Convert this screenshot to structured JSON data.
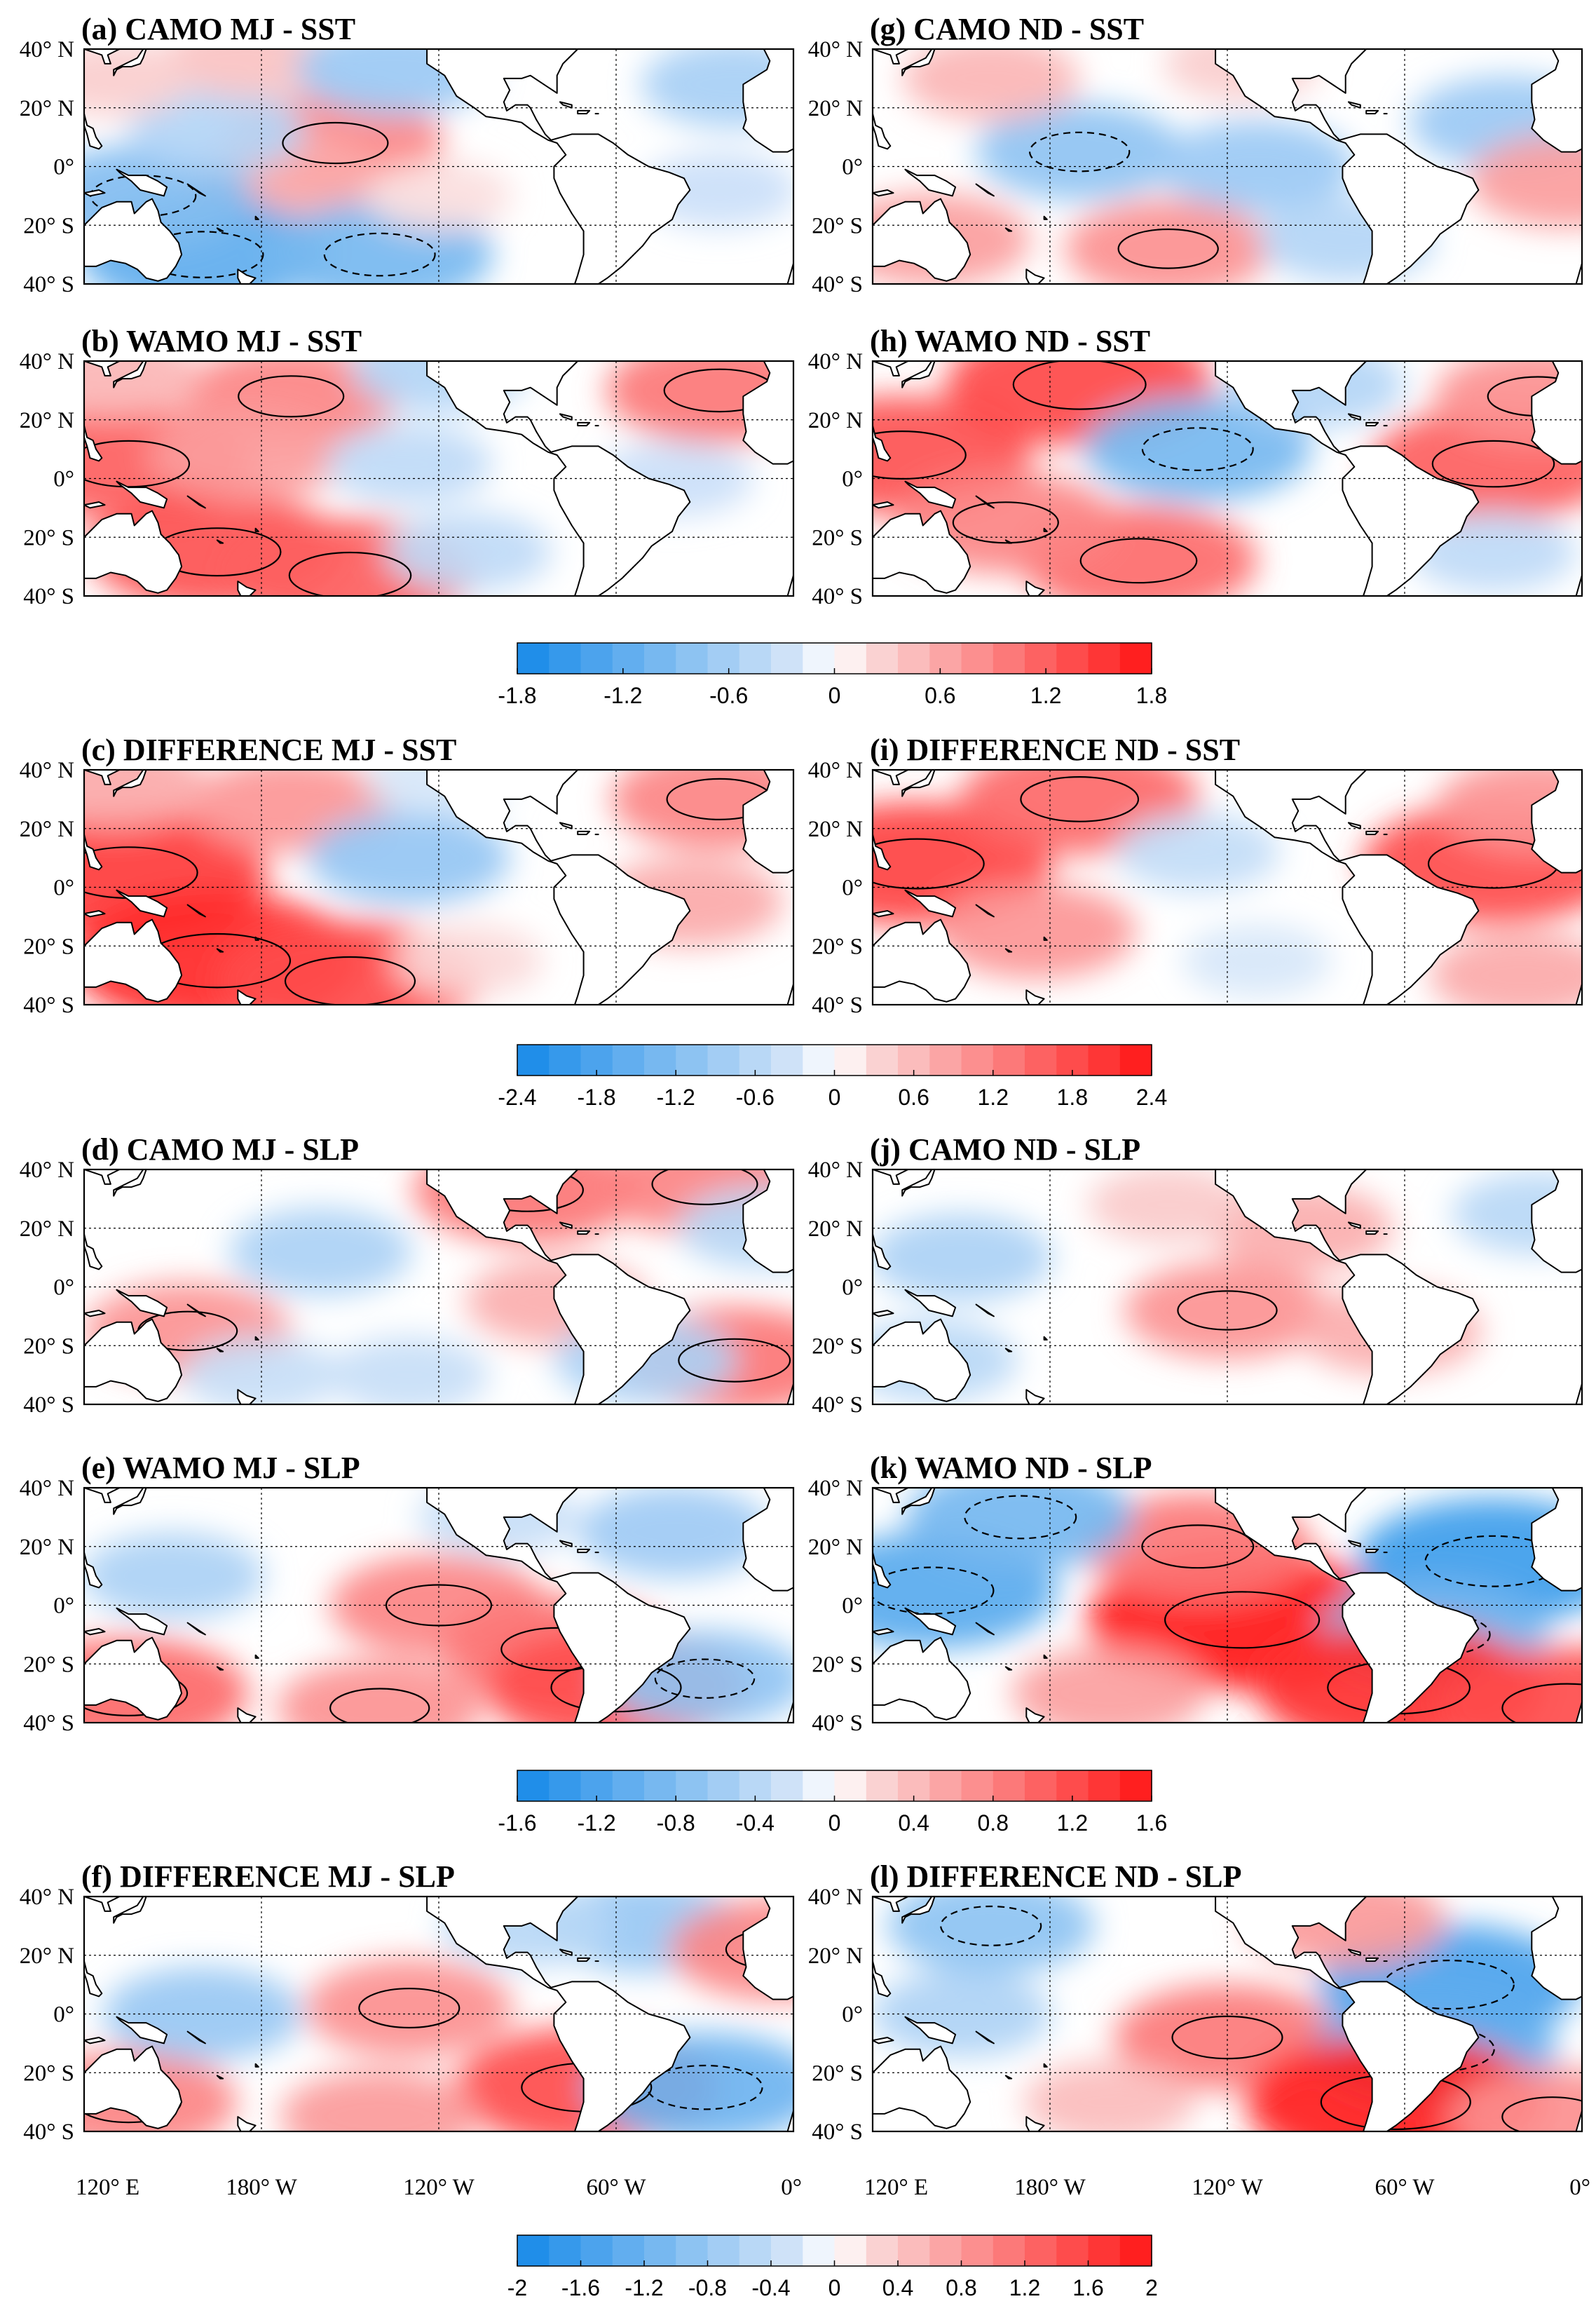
{
  "figure": {
    "background": "#ffffff"
  },
  "lat_ticks": [
    "40° N",
    "20° N",
    "0°",
    "20° S",
    "40° S"
  ],
  "lon_ticks": [
    "120° E",
    "180° W",
    "120° W",
    "60° W",
    "0°"
  ],
  "palette": {
    "blue_strong": "#1589e8",
    "blue_light": "#cfe2f8",
    "white": "#ffffff",
    "red_light": "#fad2d2",
    "red_strong": "#ff1414",
    "land": "#ffffff",
    "coast": "#000000"
  },
  "colorbars": [
    {
      "name": "colorbar-sst-models",
      "ticks": [
        "-1.8",
        "-1.2",
        "-0.6",
        "0",
        "0.6",
        "1.2",
        "1.8"
      ],
      "min": -1.8,
      "max": 1.8
    },
    {
      "name": "colorbar-sst-difference",
      "ticks": [
        "-2.4",
        "-1.8",
        "-1.2",
        "-0.6",
        "0",
        "0.6",
        "1.2",
        "1.8",
        "2.4"
      ],
      "min": -2.4,
      "max": 2.4
    },
    {
      "name": "colorbar-slp-models",
      "ticks": [
        "-1.6",
        "-1.2",
        "-0.8",
        "-0.4",
        "0",
        "0.4",
        "0.8",
        "1.2",
        "1.6"
      ],
      "min": -1.6,
      "max": 1.6
    },
    {
      "name": "colorbar-slp-difference",
      "ticks": [
        "-2",
        "-1.6",
        "-1.2",
        "-0.8",
        "-0.4",
        "0",
        "0.4",
        "0.8",
        "1.2",
        "1.6",
        "2"
      ],
      "min": -2,
      "max": 2
    }
  ],
  "chart_data": [
    {
      "type": "heatmap",
      "id": "a",
      "title": "(a) CAMO MJ - SST",
      "variable": "SST",
      "season": "MJ",
      "experiment": "CAMO",
      "lat_range": [
        -40,
        40
      ],
      "lon_range": [
        120,
        360
      ],
      "features": [
        {
          "lon": 205,
          "lat": 8,
          "value": 0.9
        },
        {
          "lon": 188,
          "lat": -3,
          "value": 0.6
        },
        {
          "lon": 160,
          "lat": -30,
          "value": -1.2
        },
        {
          "lon": 220,
          "lat": -30,
          "value": -1.0
        },
        {
          "lon": 140,
          "lat": -10,
          "value": -0.9
        },
        {
          "lon": 165,
          "lat": 12,
          "value": -0.5
        },
        {
          "lon": 175,
          "lat": 37,
          "value": 0.4
        },
        {
          "lon": 225,
          "lat": 33,
          "value": -0.7
        },
        {
          "lon": 340,
          "lat": 28,
          "value": -0.6
        },
        {
          "lon": 335,
          "lat": -8,
          "value": -0.3
        },
        {
          "lon": 130,
          "lat": 30,
          "value": 0.3
        },
        {
          "lon": 240,
          "lat": -10,
          "value": 0.2
        }
      ]
    },
    {
      "type": "heatmap",
      "id": "b",
      "title": "(b) WAMO MJ - SST",
      "variable": "SST",
      "season": "MJ",
      "experiment": "WAMO",
      "lat_range": [
        -40,
        40
      ],
      "lon_range": [
        120,
        360
      ],
      "features": [
        {
          "lon": 135,
          "lat": 5,
          "value": 1.2
        },
        {
          "lon": 165,
          "lat": -25,
          "value": 1.3
        },
        {
          "lon": 210,
          "lat": -33,
          "value": 1.2
        },
        {
          "lon": 190,
          "lat": 28,
          "value": 0.9
        },
        {
          "lon": 175,
          "lat": 8,
          "value": 0.7
        },
        {
          "lon": 230,
          "lat": 5,
          "value": -0.4
        },
        {
          "lon": 335,
          "lat": 30,
          "value": 1.0
        },
        {
          "lon": 320,
          "lat": 0,
          "value": -0.3
        },
        {
          "lon": 250,
          "lat": -25,
          "value": -0.4
        },
        {
          "lon": 240,
          "lat": 37,
          "value": -0.5
        },
        {
          "lon": 130,
          "lat": 35,
          "value": 0.5
        }
      ]
    },
    {
      "type": "heatmap",
      "id": "c",
      "title": "(c) DIFFERENCE MJ - SST",
      "variable": "SST",
      "season": "MJ",
      "experiment": "DIFFERENCE",
      "lat_range": [
        -40,
        40
      ],
      "lon_range": [
        120,
        360
      ],
      "features": [
        {
          "lon": 135,
          "lat": 5,
          "value": 2.0
        },
        {
          "lon": 165,
          "lat": -25,
          "value": 2.2
        },
        {
          "lon": 210,
          "lat": -32,
          "value": 1.8
        },
        {
          "lon": 190,
          "lat": 28,
          "value": 1.0
        },
        {
          "lon": 230,
          "lat": 10,
          "value": -1.0
        },
        {
          "lon": 335,
          "lat": 30,
          "value": 1.2
        },
        {
          "lon": 325,
          "lat": -5,
          "value": 0.8
        },
        {
          "lon": 250,
          "lat": -25,
          "value": 0.3
        },
        {
          "lon": 130,
          "lat": 35,
          "value": 0.8
        },
        {
          "lon": 240,
          "lat": 37,
          "value": -0.3
        }
      ]
    },
    {
      "type": "heatmap",
      "id": "d",
      "title": "(d) CAMO MJ - SLP",
      "variable": "SLP",
      "season": "MJ",
      "experiment": "CAMO",
      "lat_range": [
        -40,
        40
      ],
      "lon_range": [
        120,
        360
      ],
      "features": [
        {
          "lon": 270,
          "lat": 33,
          "value": 0.9
        },
        {
          "lon": 330,
          "lat": 35,
          "value": 0.8
        },
        {
          "lon": 200,
          "lat": 12,
          "value": -0.5
        },
        {
          "lon": 155,
          "lat": -15,
          "value": 0.7
        },
        {
          "lon": 340,
          "lat": -25,
          "value": 0.9
        },
        {
          "lon": 280,
          "lat": -5,
          "value": 0.5
        },
        {
          "lon": 310,
          "lat": -25,
          "value": -0.5
        },
        {
          "lon": 180,
          "lat": -30,
          "value": -0.3
        },
        {
          "lon": 350,
          "lat": 20,
          "value": -0.4
        },
        {
          "lon": 230,
          "lat": -30,
          "value": -0.3
        }
      ]
    },
    {
      "type": "heatmap",
      "id": "e",
      "title": "(e) WAMO MJ - SLP",
      "variable": "SLP",
      "season": "MJ",
      "experiment": "WAMO",
      "lat_range": [
        -40,
        40
      ],
      "lon_range": [
        120,
        360
      ],
      "features": [
        {
          "lon": 240,
          "lat": 0,
          "value": 0.8
        },
        {
          "lon": 280,
          "lat": -15,
          "value": 0.9
        },
        {
          "lon": 135,
          "lat": -30,
          "value": 1.0
        },
        {
          "lon": 300,
          "lat": -28,
          "value": 1.2
        },
        {
          "lon": 150,
          "lat": 10,
          "value": -0.5
        },
        {
          "lon": 320,
          "lat": 25,
          "value": -0.6
        },
        {
          "lon": 330,
          "lat": -25,
          "value": -0.7
        },
        {
          "lon": 220,
          "lat": -35,
          "value": 0.7
        },
        {
          "lon": 260,
          "lat": 30,
          "value": -0.3
        }
      ]
    },
    {
      "type": "heatmap",
      "id": "f",
      "title": "(f) DIFFERENCE MJ - SLP",
      "variable": "SLP",
      "season": "MJ",
      "experiment": "DIFFERENCE",
      "lat_range": [
        -40,
        40
      ],
      "lon_range": [
        120,
        360
      ],
      "features": [
        {
          "lon": 230,
          "lat": 2,
          "value": 0.9
        },
        {
          "lon": 290,
          "lat": -25,
          "value": 1.5
        },
        {
          "lon": 135,
          "lat": -30,
          "value": 1.0
        },
        {
          "lon": 160,
          "lat": 0,
          "value": -0.8
        },
        {
          "lon": 330,
          "lat": -25,
          "value": -1.2
        },
        {
          "lon": 310,
          "lat": 30,
          "value": -0.8
        },
        {
          "lon": 355,
          "lat": 22,
          "value": 1.0
        },
        {
          "lon": 220,
          "lat": -35,
          "value": 0.8
        },
        {
          "lon": 270,
          "lat": 30,
          "value": -0.5
        }
      ]
    },
    {
      "type": "heatmap",
      "id": "g",
      "title": "(g) CAMO ND - SST",
      "variable": "SST",
      "season": "ND",
      "experiment": "CAMO",
      "lat_range": [
        -40,
        40
      ],
      "lon_range": [
        120,
        360
      ],
      "features": [
        {
          "lon": 190,
          "lat": 5,
          "value": -0.8
        },
        {
          "lon": 250,
          "lat": 0,
          "value": -0.7
        },
        {
          "lon": 140,
          "lat": -25,
          "value": 0.7
        },
        {
          "lon": 220,
          "lat": -28,
          "value": 0.8
        },
        {
          "lon": 160,
          "lat": 30,
          "value": 0.5
        },
        {
          "lon": 335,
          "lat": 15,
          "value": -0.7
        },
        {
          "lon": 355,
          "lat": -5,
          "value": 0.7
        },
        {
          "lon": 280,
          "lat": -25,
          "value": -0.5
        },
        {
          "lon": 245,
          "lat": 35,
          "value": 0.3
        }
      ]
    },
    {
      "type": "heatmap",
      "id": "h",
      "title": "(h) WAMO ND - SST",
      "variable": "SST",
      "season": "ND",
      "experiment": "WAMO",
      "lat_range": [
        -40,
        40
      ],
      "lon_range": [
        120,
        360
      ],
      "features": [
        {
          "lon": 130,
          "lat": 8,
          "value": 1.3
        },
        {
          "lon": 190,
          "lat": 32,
          "value": 1.4
        },
        {
          "lon": 230,
          "lat": 10,
          "value": -1.0
        },
        {
          "lon": 210,
          "lat": -28,
          "value": 1.1
        },
        {
          "lon": 165,
          "lat": -15,
          "value": 0.9
        },
        {
          "lon": 330,
          "lat": 5,
          "value": 1.2
        },
        {
          "lon": 345,
          "lat": 28,
          "value": 0.8
        },
        {
          "lon": 330,
          "lat": -25,
          "value": -0.4
        },
        {
          "lon": 270,
          "lat": 32,
          "value": -0.5
        }
      ]
    },
    {
      "type": "heatmap",
      "id": "i",
      "title": "(i) DIFFERENCE ND - SST",
      "variable": "SST",
      "season": "ND",
      "experiment": "DIFFERENCE",
      "lat_range": [
        -40,
        40
      ],
      "lon_range": [
        120,
        360
      ],
      "features": [
        {
          "lon": 135,
          "lat": 8,
          "value": 1.9
        },
        {
          "lon": 190,
          "lat": 30,
          "value": 1.5
        },
        {
          "lon": 175,
          "lat": -15,
          "value": 1.0
        },
        {
          "lon": 230,
          "lat": 12,
          "value": -0.5
        },
        {
          "lon": 330,
          "lat": 8,
          "value": 1.8
        },
        {
          "lon": 345,
          "lat": 28,
          "value": 1.0
        },
        {
          "lon": 340,
          "lat": -30,
          "value": 0.8
        },
        {
          "lon": 250,
          "lat": -25,
          "value": -0.3
        }
      ]
    },
    {
      "type": "heatmap",
      "id": "j",
      "title": "(j) CAMO ND - SLP",
      "variable": "SLP",
      "season": "ND",
      "experiment": "CAMO",
      "lat_range": [
        -40,
        40
      ],
      "lon_range": [
        120,
        360
      ],
      "features": [
        {
          "lon": 240,
          "lat": -8,
          "value": 0.7
        },
        {
          "lon": 265,
          "lat": 20,
          "value": 0.5
        },
        {
          "lon": 295,
          "lat": -15,
          "value": 0.5
        },
        {
          "lon": 150,
          "lat": 10,
          "value": -0.5
        },
        {
          "lon": 140,
          "lat": -25,
          "value": -0.4
        },
        {
          "lon": 345,
          "lat": 25,
          "value": -0.4
        },
        {
          "lon": 220,
          "lat": 28,
          "value": 0.3
        }
      ]
    },
    {
      "type": "heatmap",
      "id": "k",
      "title": "(k) WAMO ND - SLP",
      "variable": "SLP",
      "season": "ND",
      "experiment": "WAMO",
      "lat_range": [
        -40,
        40
      ],
      "lon_range": [
        120,
        360
      ],
      "features": [
        {
          "lon": 245,
          "lat": -5,
          "value": 1.6
        },
        {
          "lon": 230,
          "lat": 20,
          "value": 0.9
        },
        {
          "lon": 140,
          "lat": 5,
          "value": -1.1
        },
        {
          "lon": 170,
          "lat": 30,
          "value": -0.9
        },
        {
          "lon": 330,
          "lat": 15,
          "value": -1.3
        },
        {
          "lon": 310,
          "lat": -10,
          "value": -0.9
        },
        {
          "lon": 298,
          "lat": -28,
          "value": 1.4
        },
        {
          "lon": 355,
          "lat": -35,
          "value": 1.2
        },
        {
          "lon": 200,
          "lat": -30,
          "value": 0.6
        }
      ]
    },
    {
      "type": "heatmap",
      "id": "l",
      "title": "(l) DIFFERENCE ND - SLP",
      "variable": "SLP",
      "season": "ND",
      "experiment": "DIFFERENCE",
      "lat_range": [
        -40,
        40
      ],
      "lon_range": [
        120,
        360
      ],
      "features": [
        {
          "lon": 240,
          "lat": -8,
          "value": 1.1
        },
        {
          "lon": 315,
          "lat": 10,
          "value": -1.5
        },
        {
          "lon": 310,
          "lat": -12,
          "value": -1.3
        },
        {
          "lon": 297,
          "lat": -30,
          "value": 1.9
        },
        {
          "lon": 160,
          "lat": 30,
          "value": -0.9
        },
        {
          "lon": 150,
          "lat": 0,
          "value": -0.6
        },
        {
          "lon": 280,
          "lat": 32,
          "value": 0.8
        },
        {
          "lon": 200,
          "lat": -30,
          "value": 0.5
        },
        {
          "lon": 350,
          "lat": -35,
          "value": 0.9
        }
      ]
    }
  ]
}
